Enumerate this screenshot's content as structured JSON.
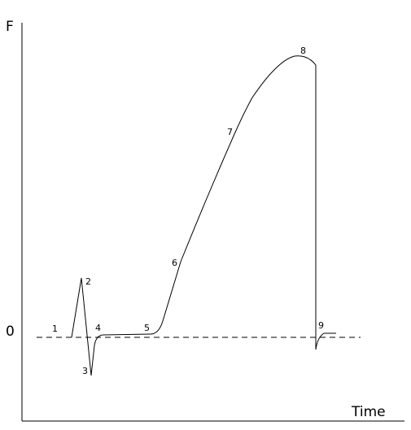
{
  "axes": {
    "y_label": "F",
    "zero_label": "0",
    "x_label": "Time"
  },
  "points": [
    {
      "label": "1"
    },
    {
      "label": "2"
    },
    {
      "label": "3"
    },
    {
      "label": "4"
    },
    {
      "label": "5"
    },
    {
      "label": "6"
    },
    {
      "label": "7"
    },
    {
      "label": "8"
    },
    {
      "label": "9"
    }
  ]
}
